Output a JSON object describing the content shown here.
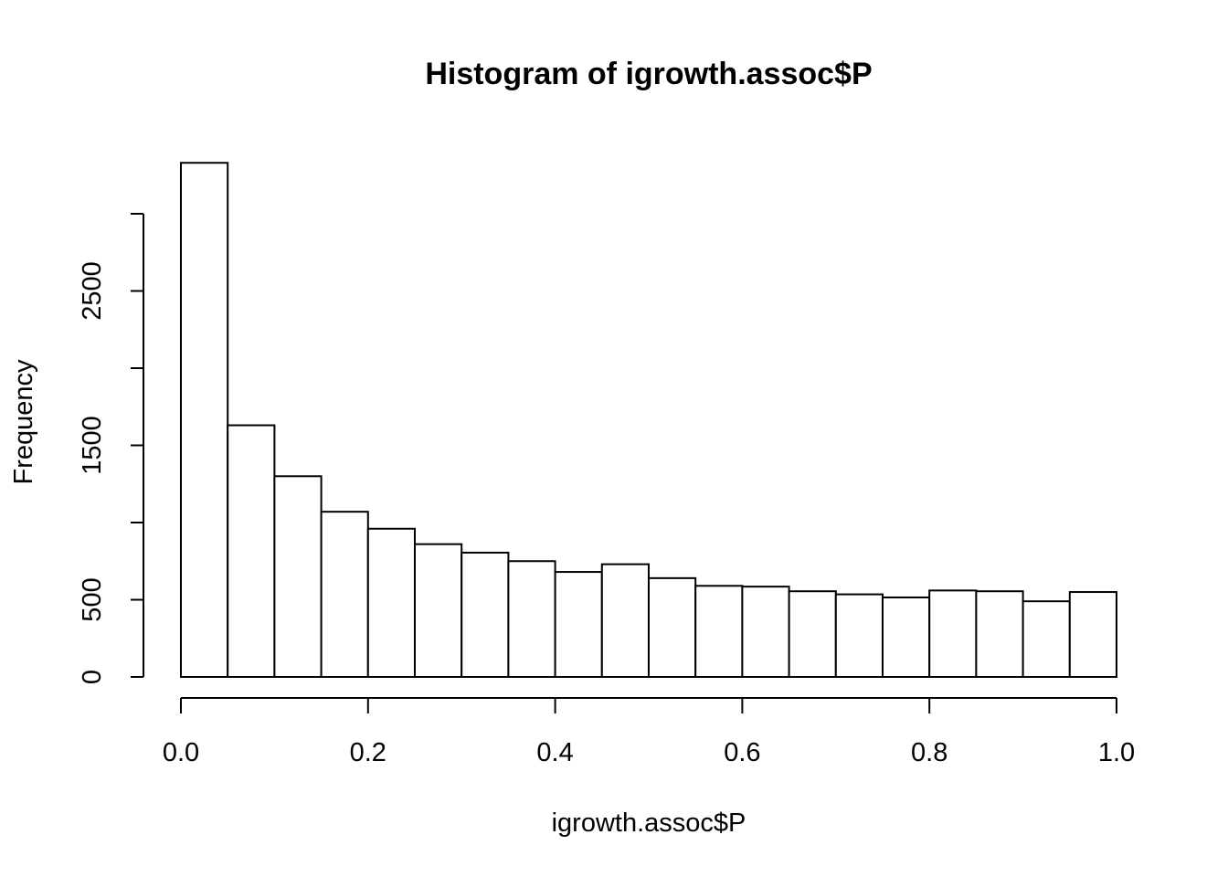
{
  "chart_data": {
    "type": "bar",
    "subtype": "histogram",
    "title": "Histogram of igrowth.assoc$P",
    "xlabel": "igrowth.assoc$P",
    "ylabel": "Frequency",
    "bin_edges": [
      0.0,
      0.05,
      0.1,
      0.15,
      0.2,
      0.25,
      0.3,
      0.35,
      0.4,
      0.45,
      0.5,
      0.55,
      0.6,
      0.65,
      0.7,
      0.75,
      0.8,
      0.85,
      0.9,
      0.95,
      1.0
    ],
    "values": [
      3330,
      1630,
      1300,
      1070,
      960,
      860,
      805,
      750,
      680,
      730,
      640,
      590,
      585,
      555,
      535,
      515,
      560,
      555,
      490,
      550
    ],
    "xlim": [
      0,
      1
    ],
    "ylim": [
      0,
      3330
    ],
    "x_ticks": [
      0.0,
      0.2,
      0.4,
      0.6,
      0.8,
      1.0
    ],
    "x_tick_labels": [
      "0.0",
      "0.2",
      "0.4",
      "0.6",
      "0.8",
      "1.0"
    ],
    "y_ticks": [
      0,
      500,
      1000,
      1500,
      2000,
      2500,
      3000
    ],
    "y_tick_labels": [
      "0",
      "500",
      "",
      "1500",
      "",
      "2500",
      ""
    ],
    "grid": false,
    "legend": "none",
    "colors": {
      "bar_fill": "#ffffff",
      "bar_stroke": "#000000"
    }
  }
}
